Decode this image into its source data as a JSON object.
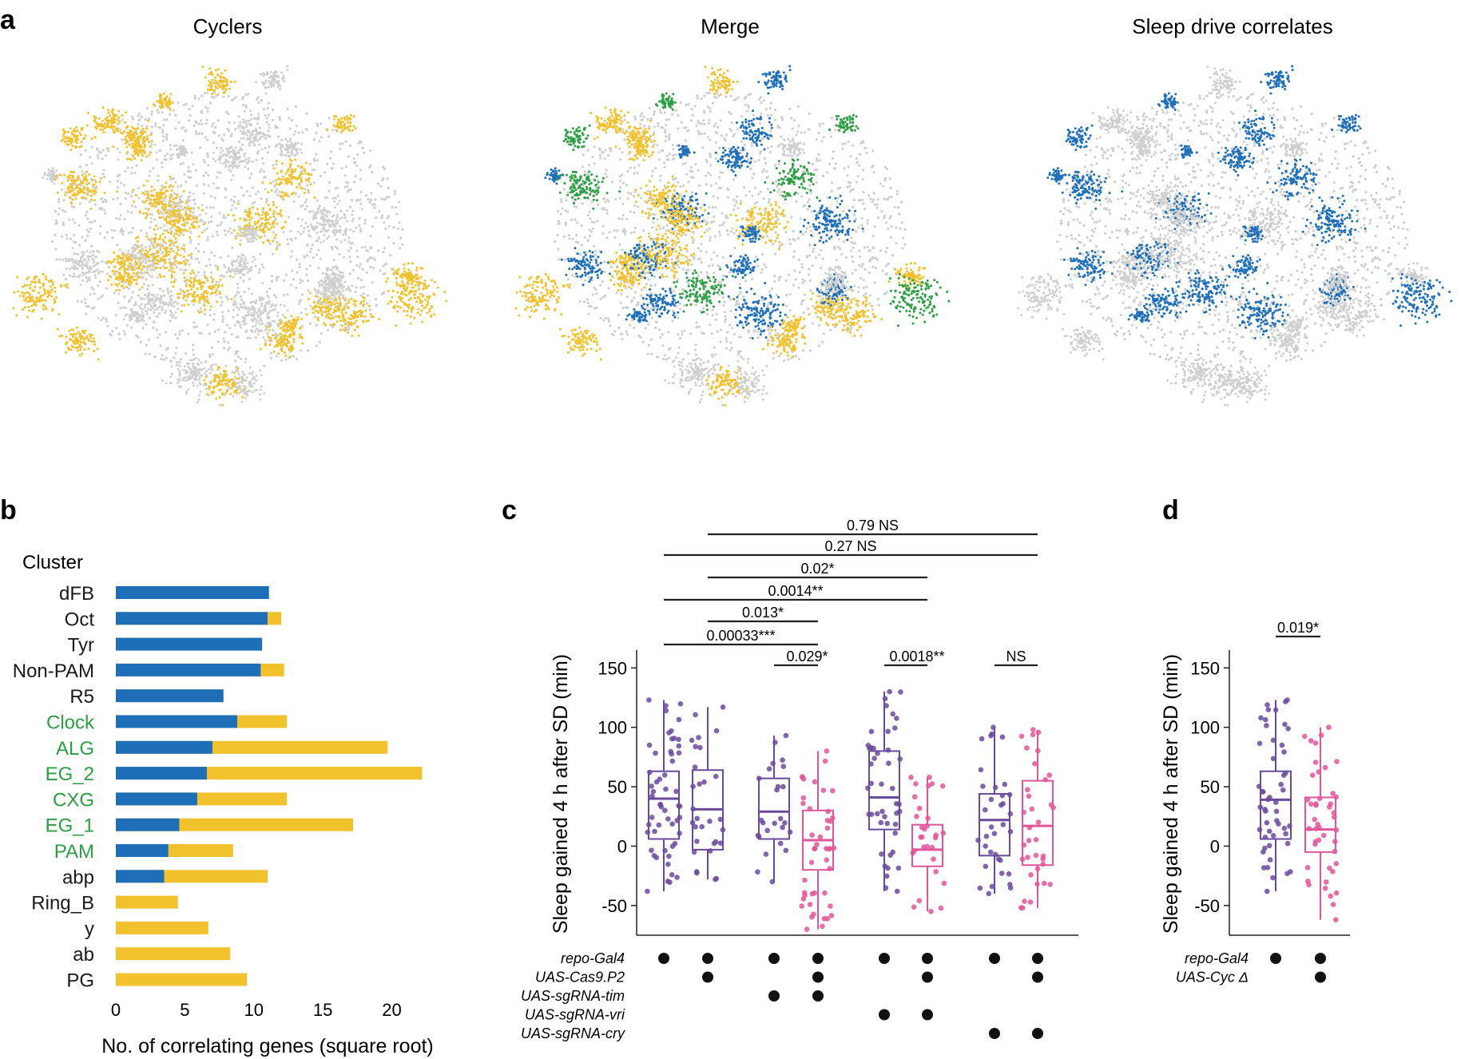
{
  "colors": {
    "cycler": "#f2c12e",
    "sleep": "#1f6fb8",
    "merge_overlap": "#2e9e44",
    "background": "#cfcfcf",
    "control": "#6b4a9c",
    "knockout": "#e0569a",
    "text_green": "#2e9e44"
  },
  "panel_a": {
    "label": "a",
    "panels": [
      {
        "title": "Cyclers",
        "mode": "cycler"
      },
      {
        "title": "Merge",
        "mode": "merge"
      },
      {
        "title": "Sleep drive correlates",
        "mode": "sleep"
      }
    ]
  },
  "chart_data": [
    {
      "panel": "b",
      "type": "bar",
      "label": "b",
      "title": "Cluster",
      "xlabel": "No. of correlating genes (square root)",
      "xlim": [
        0,
        22
      ],
      "xticks": [
        0,
        5,
        10,
        15,
        20
      ],
      "categories": [
        "dFB",
        "Oct",
        "Tyr",
        "Non-PAM",
        "R5",
        "Clock",
        "ALG",
        "EG_2",
        "CXG",
        "EG_1",
        "PAM",
        "abp",
        "Ring_B",
        "y",
        "ab",
        "PG"
      ],
      "green_categories": [
        "Clock",
        "ALG",
        "EG_2",
        "CXG",
        "EG_1",
        "PAM"
      ],
      "series": [
        {
          "name": "Sleep drive correlates",
          "color": "#1f6fb8",
          "values": [
            11.1,
            11.0,
            10.6,
            10.5,
            7.8,
            8.8,
            7.0,
            6.6,
            5.9,
            4.6,
            3.8,
            3.5,
            0,
            0,
            0,
            0
          ]
        },
        {
          "name": "Cyclers",
          "color": "#f2c12e",
          "values": [
            0,
            12.0,
            10.6,
            12.2,
            7.8,
            12.4,
            19.7,
            22.2,
            12.4,
            17.2,
            8.5,
            11.0,
            4.5,
            6.7,
            8.3,
            9.5
          ]
        }
      ]
    },
    {
      "panel": "c",
      "type": "box",
      "label": "c",
      "ylabel": "Sleep gained 4 h after SD (min)",
      "ylim": [
        -75,
        165
      ],
      "yticks": [
        150,
        100,
        50,
        0,
        -50
      ],
      "groups": [
        {
          "color": "control",
          "q1": 6,
          "median": 40,
          "q3": 63,
          "lo": -38,
          "hi": 123,
          "n": 55
        },
        {
          "color": "control",
          "q1": -3,
          "median": 31,
          "q3": 64,
          "lo": -28,
          "hi": 117,
          "n": 30
        },
        {
          "color": "control",
          "q1": 6,
          "median": 29,
          "q3": 57,
          "lo": -30,
          "hi": 93,
          "n": 25
        },
        {
          "color": "knockout",
          "q1": -20,
          "median": 5,
          "q3": 30,
          "lo": -70,
          "hi": 80,
          "n": 45
        },
        {
          "color": "control",
          "q1": 14,
          "median": 41,
          "q3": 80,
          "lo": -38,
          "hi": 130,
          "n": 45
        },
        {
          "color": "knockout",
          "q1": -17,
          "median": -3,
          "q3": 18,
          "lo": -55,
          "hi": 58,
          "n": 30
        },
        {
          "color": "control",
          "q1": -8,
          "median": 22,
          "q3": 44,
          "lo": -40,
          "hi": 100,
          "n": 35
        },
        {
          "color": "knockout",
          "q1": -16,
          "median": 17,
          "q3": 55,
          "lo": -52,
          "hi": 98,
          "n": 35
        }
      ],
      "comparisons": [
        {
          "from": 0,
          "to": 3,
          "label": "0.00033***"
        },
        {
          "from": 1,
          "to": 3,
          "label": "0.013*"
        },
        {
          "from": 0,
          "to": 5,
          "label": "0.0014**"
        },
        {
          "from": 1,
          "to": 5,
          "label": "0.02*"
        },
        {
          "from": 0,
          "to": 7,
          "label": "0.27 NS"
        },
        {
          "from": 1,
          "to": 7,
          "label": "0.79 NS"
        },
        {
          "from": 2,
          "to": 3,
          "label": "0.029*"
        },
        {
          "from": 4,
          "to": 5,
          "label": "0.0018**"
        },
        {
          "from": 6,
          "to": 7,
          "label": "NS"
        }
      ],
      "genotypes": [
        {
          "name": "repo-Gal4",
          "present": [
            0,
            1,
            2,
            3,
            4,
            5,
            6,
            7
          ]
        },
        {
          "name": "UAS-Cas9.P2",
          "present": [
            1,
            3,
            5,
            7
          ]
        },
        {
          "name": "UAS-sgRNA-tim",
          "present": [
            2,
            3
          ]
        },
        {
          "name": "UAS-sgRNA-vri",
          "present": [
            4,
            5
          ]
        },
        {
          "name": "UAS-sgRNA-cry",
          "present": [
            6,
            7
          ]
        }
      ]
    },
    {
      "panel": "d",
      "type": "box",
      "label": "d",
      "ylabel": "Sleep gained 4 h after SD (min)",
      "ylim": [
        -75,
        165
      ],
      "yticks": [
        150,
        100,
        50,
        0,
        -50
      ],
      "groups": [
        {
          "color": "control",
          "q1": 6,
          "median": 39,
          "q3": 63,
          "lo": -38,
          "hi": 123,
          "n": 50
        },
        {
          "color": "knockout",
          "q1": -5,
          "median": 14,
          "q3": 41,
          "lo": -62,
          "hi": 100,
          "n": 45
        }
      ],
      "comparisons": [
        {
          "from": 0,
          "to": 1,
          "label": "0.019*"
        }
      ],
      "genotypes": [
        {
          "name": "repo-Gal4",
          "present": [
            0,
            1
          ]
        },
        {
          "name": "UAS-Cyc Δ",
          "present": [
            1
          ]
        }
      ]
    }
  ]
}
